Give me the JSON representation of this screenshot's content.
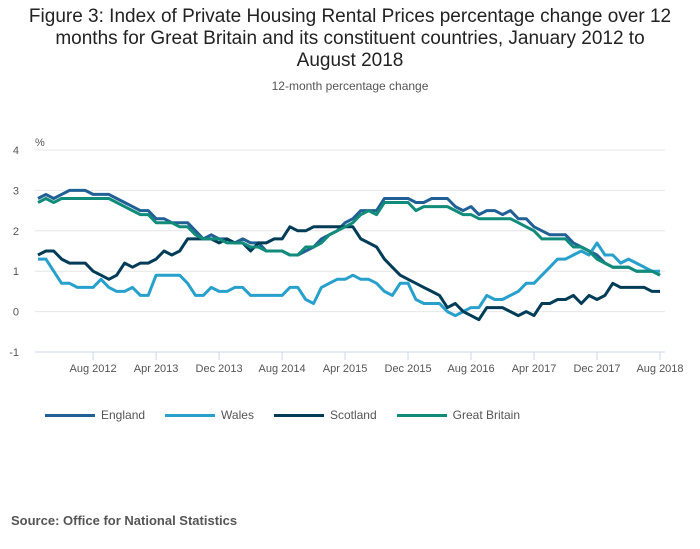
{
  "title_lines": [
    "Figure 3: Index of Private Housing Rental Prices percentage change over 12",
    "months for Great Britain and its constituent countries, January 2012 to",
    "August 2018"
  ],
  "subtitle": "12-month percentage change",
  "source": "Source: Office for National Statistics",
  "chart_data": {
    "type": "line",
    "title": "Figure 3: Index of Private Housing Rental Prices percentage change over 12 months for Great Britain and its constituent countries, January 2012 to August 2018",
    "subtitle": "12-month percentage change",
    "xlabel": "",
    "ylabel": "%",
    "ylim": [
      -1,
      4
    ],
    "yticks": [
      4,
      3,
      2,
      1,
      0,
      -1
    ],
    "x_start": "Jan 2012",
    "x_end": "Aug 2018",
    "x_frequency": "monthly",
    "xtick_labels": [
      "Aug 2012",
      "Apr 2013",
      "Dec 2013",
      "Aug 2014",
      "Apr 2015",
      "Dec 2015",
      "Aug 2016",
      "Apr 2017",
      "Dec 2017",
      "Aug 2018"
    ],
    "xtick_month_index": [
      7,
      15,
      23,
      31,
      39,
      47,
      55,
      63,
      71,
      79
    ],
    "grid": true,
    "legend_position": "bottom",
    "series": [
      {
        "name": "England",
        "color": "#206095",
        "values": [
          2.8,
          2.9,
          2.8,
          2.9,
          3.0,
          3.0,
          3.0,
          2.9,
          2.9,
          2.9,
          2.8,
          2.7,
          2.6,
          2.5,
          2.5,
          2.3,
          2.3,
          2.2,
          2.2,
          2.2,
          2.0,
          1.8,
          1.9,
          1.8,
          1.8,
          1.7,
          1.8,
          1.7,
          1.7,
          1.5,
          1.5,
          1.5,
          1.4,
          1.4,
          1.5,
          1.6,
          1.8,
          1.9,
          2.0,
          2.2,
          2.3,
          2.5,
          2.5,
          2.5,
          2.8,
          2.8,
          2.8,
          2.8,
          2.7,
          2.7,
          2.8,
          2.8,
          2.8,
          2.6,
          2.5,
          2.6,
          2.4,
          2.5,
          2.5,
          2.4,
          2.5,
          2.3,
          2.3,
          2.1,
          2.0,
          1.9,
          1.9,
          1.9,
          1.7,
          1.6,
          1.5,
          1.4,
          1.2,
          1.1,
          1.1,
          1.1,
          1.0,
          1.0,
          1.0,
          0.9
        ]
      },
      {
        "name": "Wales",
        "color": "#27a0cc",
        "values": [
          1.3,
          1.3,
          1.0,
          0.7,
          0.7,
          0.6,
          0.6,
          0.6,
          0.8,
          0.6,
          0.5,
          0.5,
          0.6,
          0.4,
          0.4,
          0.9,
          0.9,
          0.9,
          0.9,
          0.7,
          0.4,
          0.4,
          0.6,
          0.5,
          0.5,
          0.6,
          0.6,
          0.4,
          0.4,
          0.4,
          0.4,
          0.4,
          0.6,
          0.6,
          0.3,
          0.2,
          0.6,
          0.7,
          0.8,
          0.8,
          0.9,
          0.8,
          0.8,
          0.7,
          0.5,
          0.4,
          0.7,
          0.7,
          0.3,
          0.2,
          0.2,
          0.2,
          0.0,
          -0.1,
          0.0,
          0.1,
          0.1,
          0.4,
          0.3,
          0.3,
          0.4,
          0.5,
          0.7,
          0.7,
          0.9,
          1.1,
          1.3,
          1.3,
          1.4,
          1.5,
          1.4,
          1.7,
          1.4,
          1.4,
          1.2,
          1.3,
          1.2,
          1.1,
          1.0,
          1.0
        ]
      },
      {
        "name": "Scotland",
        "color": "#003c57",
        "values": [
          1.4,
          1.5,
          1.5,
          1.3,
          1.2,
          1.2,
          1.2,
          1.0,
          0.9,
          0.8,
          0.9,
          1.2,
          1.1,
          1.2,
          1.2,
          1.3,
          1.5,
          1.4,
          1.5,
          1.8,
          1.8,
          1.8,
          1.8,
          1.7,
          1.8,
          1.7,
          1.7,
          1.5,
          1.7,
          1.7,
          1.8,
          1.8,
          2.1,
          2.0,
          2.0,
          2.1,
          2.1,
          2.1,
          2.1,
          2.1,
          2.1,
          1.8,
          1.7,
          1.6,
          1.3,
          1.1,
          0.9,
          0.8,
          0.7,
          0.6,
          0.5,
          0.4,
          0.1,
          0.2,
          0.0,
          -0.1,
          -0.2,
          0.1,
          0.1,
          0.1,
          0.0,
          -0.1,
          0.0,
          -0.1,
          0.2,
          0.2,
          0.3,
          0.3,
          0.4,
          0.2,
          0.4,
          0.3,
          0.4,
          0.7,
          0.6,
          0.6,
          0.6,
          0.6,
          0.5,
          0.5
        ]
      },
      {
        "name": "Great Britain",
        "color": "#118c7b",
        "values": [
          2.7,
          2.8,
          2.7,
          2.8,
          2.8,
          2.8,
          2.8,
          2.8,
          2.8,
          2.8,
          2.7,
          2.6,
          2.5,
          2.4,
          2.4,
          2.2,
          2.2,
          2.2,
          2.1,
          2.1,
          1.9,
          1.8,
          1.8,
          1.8,
          1.7,
          1.7,
          1.7,
          1.6,
          1.6,
          1.5,
          1.5,
          1.5,
          1.4,
          1.4,
          1.6,
          1.6,
          1.7,
          1.9,
          2.0,
          2.1,
          2.2,
          2.4,
          2.5,
          2.4,
          2.7,
          2.7,
          2.7,
          2.7,
          2.5,
          2.6,
          2.6,
          2.6,
          2.6,
          2.5,
          2.4,
          2.4,
          2.3,
          2.3,
          2.3,
          2.3,
          2.3,
          2.2,
          2.1,
          2.0,
          1.8,
          1.8,
          1.8,
          1.8,
          1.6,
          1.6,
          1.5,
          1.3,
          1.2,
          1.1,
          1.1,
          1.1,
          1.0,
          1.0,
          1.0,
          0.9
        ]
      }
    ]
  }
}
